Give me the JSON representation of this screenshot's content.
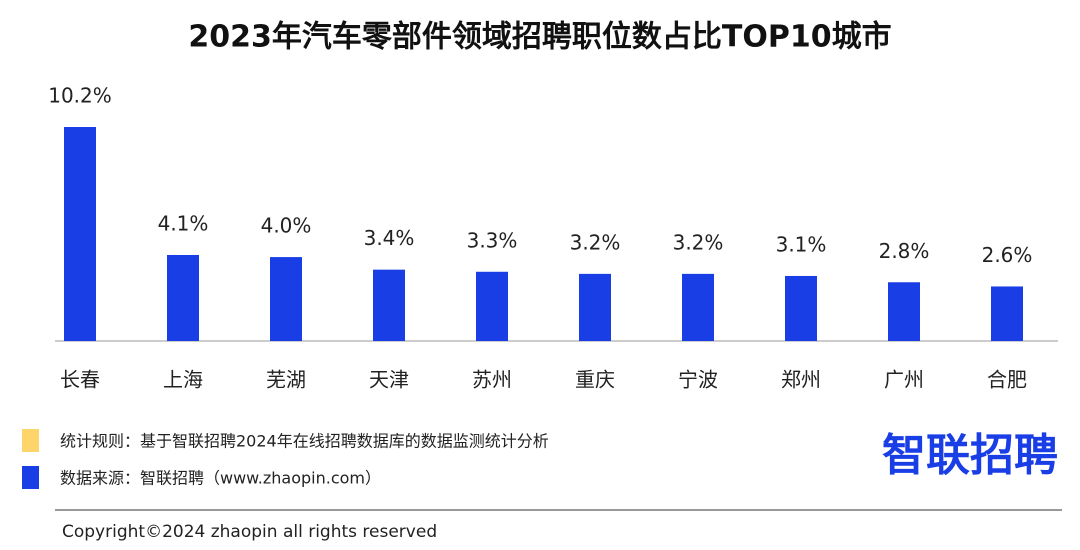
{
  "chart_data": {
    "type": "bar",
    "title": "2023年汽车零部件领域招聘职位数占比TOP10城市",
    "categories": [
      "长春",
      "上海",
      "芜湖",
      "天津",
      "苏州",
      "重庆",
      "宁波",
      "郑州",
      "广州",
      "合肥"
    ],
    "values": [
      10.2,
      4.1,
      4.0,
      3.4,
      3.3,
      3.2,
      3.2,
      3.1,
      2.8,
      2.6
    ],
    "value_labels": [
      "10.2%",
      "4.1%",
      "4.0%",
      "3.4%",
      "3.3%",
      "3.2%",
      "3.2%",
      "3.1%",
      "2.8%",
      "2.6%"
    ],
    "color": "#1a3ee6"
  },
  "notes": [
    "统计规则：基于智联招聘2024年在线招聘数据库的数据监测统计分析",
    "数据来源：智联招聘（www.zhaopin.com）"
  ],
  "logo": "智联招聘",
  "copyright": "Copyright©2024 zhaopin all rights reserved"
}
